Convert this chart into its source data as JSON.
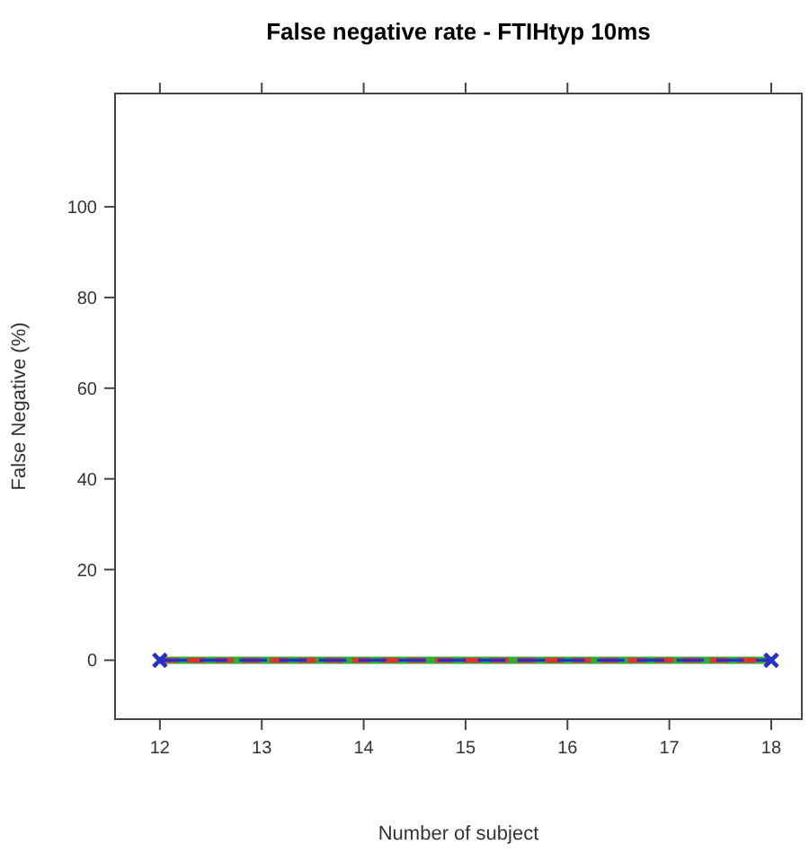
{
  "chart_data": {
    "type": "line",
    "title": "False negative rate - FTIHtyp 10ms",
    "xlabel": "Number of subject",
    "ylabel": "False Negative (%)",
    "x": [
      12,
      18
    ],
    "series": [
      {
        "color": "#33aa33",
        "values": [
          0,
          0
        ],
        "line_style": "solid"
      },
      {
        "color": "#dd3333",
        "values": [
          0,
          0
        ]
      },
      {
        "color": "#2233cc",
        "values": [
          0,
          0
        ]
      }
    ],
    "xlim": [
      11.56,
      18.3
    ],
    "xticks": [
      12,
      13,
      14,
      15,
      16,
      17,
      18
    ],
    "ylim": [
      -13,
      125
    ],
    "yticks": [
      0,
      20,
      40,
      60,
      80,
      100
    ],
    "marker": "cross",
    "line_style": "dashed"
  }
}
